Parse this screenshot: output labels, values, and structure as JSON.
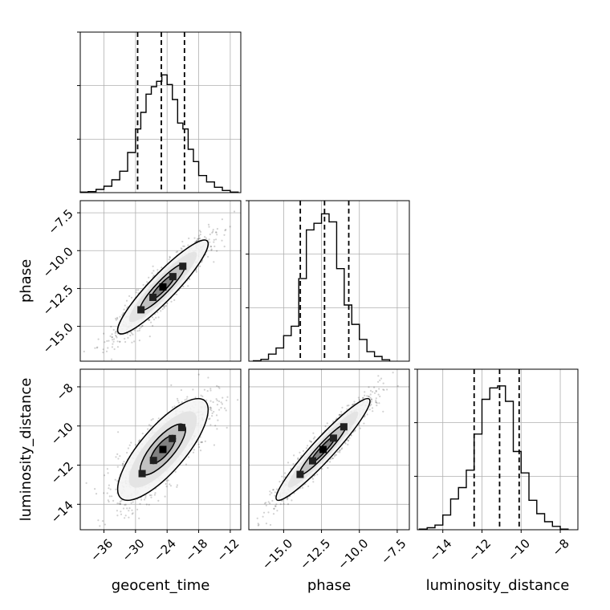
{
  "chart_data": {
    "type": "corner",
    "parameters": [
      "geocent_time",
      "phase",
      "luminosity_distance"
    ],
    "axis_labels": {
      "bottom": [
        "geocent_time",
        "phase",
        "luminosity_distance"
      ],
      "left": [
        "phase",
        "luminosity_distance"
      ]
    },
    "ranges": {
      "geocent_time": [
        -40.5,
        -10.0
      ],
      "phase": [
        -17.3,
        -6.7
      ],
      "luminosity_distance": [
        -15.3,
        -7.1
      ]
    },
    "ticks": {
      "geocent_time": [
        {
          "v": -36,
          "label": "−36"
        },
        {
          "v": -30,
          "label": "−30"
        },
        {
          "v": -24,
          "label": "−24"
        },
        {
          "v": -18,
          "label": "−18"
        },
        {
          "v": -12,
          "label": "−12"
        }
      ],
      "phase": [
        {
          "v": -15.0,
          "label": "−15.0"
        },
        {
          "v": -12.5,
          "label": "−12.5"
        },
        {
          "v": -10.0,
          "label": "−10.0"
        },
        {
          "v": -7.5,
          "label": "−7.5"
        }
      ],
      "luminosity_distance": [
        {
          "v": -14,
          "label": "−14"
        },
        {
          "v": -12,
          "label": "−12"
        },
        {
          "v": -10,
          "label": "−10"
        },
        {
          "v": -8,
          "label": "−8"
        }
      ]
    },
    "grid": true,
    "quantiles": {
      "geocent_time": [
        -29.6,
        -25.1,
        -20.7
      ],
      "phase": [
        -13.9,
        -12.3,
        -10.7
      ],
      "luminosity_distance": [
        -12.4,
        -11.1,
        -10.1
      ]
    },
    "histograms": {
      "geocent_time": {
        "edges": [
          -40.5,
          -39.0,
          -37.5,
          -36.0,
          -34.5,
          -33.0,
          -31.5,
          -30.0,
          -29.0,
          -28.0,
          -27.0,
          -26.0,
          -25.0,
          -24.0,
          -23.0,
          -22.0,
          -21.0,
          -20.0,
          -19.0,
          -18.0,
          -16.5,
          -15.0,
          -13.5,
          -12.0,
          -10.5
        ],
        "counts": [
          1,
          2,
          6,
          12,
          24,
          40,
          75,
          119,
          150,
          184,
          198,
          208,
          220,
          202,
          174,
          130,
          119,
          81,
          58,
          32,
          20,
          10,
          4,
          1
        ],
        "ymax": 300
      },
      "phase": {
        "edges": [
          -17.0,
          -16.5,
          -16.0,
          -15.5,
          -15.0,
          -14.5,
          -14.0,
          -13.5,
          -13.0,
          -12.5,
          -12.0,
          -11.5,
          -11.0,
          -10.5,
          -10.0,
          -9.5,
          -9.0,
          -8.5,
          -8.0
        ],
        "counts": [
          1,
          4,
          15,
          28,
          54,
          74,
          175,
          278,
          292,
          312,
          295,
          196,
          119,
          78,
          46,
          20,
          10,
          3
        ],
        "ymax": 340
      },
      "luminosity_distance": {
        "edges": [
          -15.2,
          -14.8,
          -14.4,
          -14.0,
          -13.6,
          -13.2,
          -12.8,
          -12.4,
          -12.0,
          -11.6,
          -11.2,
          -10.8,
          -10.4,
          -10.0,
          -9.6,
          -9.2,
          -8.8,
          -8.4,
          -8.0,
          -7.6
        ],
        "counts": [
          1,
          3,
          7,
          22,
          46,
          63,
          89,
          143,
          195,
          212,
          215,
          192,
          117,
          85,
          44,
          24,
          12,
          5,
          1
        ],
        "ymax": 240
      }
    },
    "pairs": [
      {
        "x": "geocent_time",
        "y": "phase",
        "mean": [
          -24.8,
          -12.4
        ],
        "sd": [
          4.3,
          1.55
        ],
        "rho": 0.92,
        "count": 1400
      },
      {
        "x": "geocent_time",
        "y": "luminosity_distance",
        "mean": [
          -24.8,
          -11.2
        ],
        "sd": [
          4.3,
          1.3
        ],
        "rho": 0.78,
        "count": 1400
      },
      {
        "x": "phase",
        "y": "luminosity_distance",
        "mean": [
          -12.4,
          -11.2
        ],
        "sd": [
          1.55,
          1.3
        ],
        "rho": 0.95,
        "count": 1400
      }
    ],
    "colors": {
      "line": "#000000",
      "grid": "#b0b0b0",
      "scatter": "#000000"
    }
  }
}
